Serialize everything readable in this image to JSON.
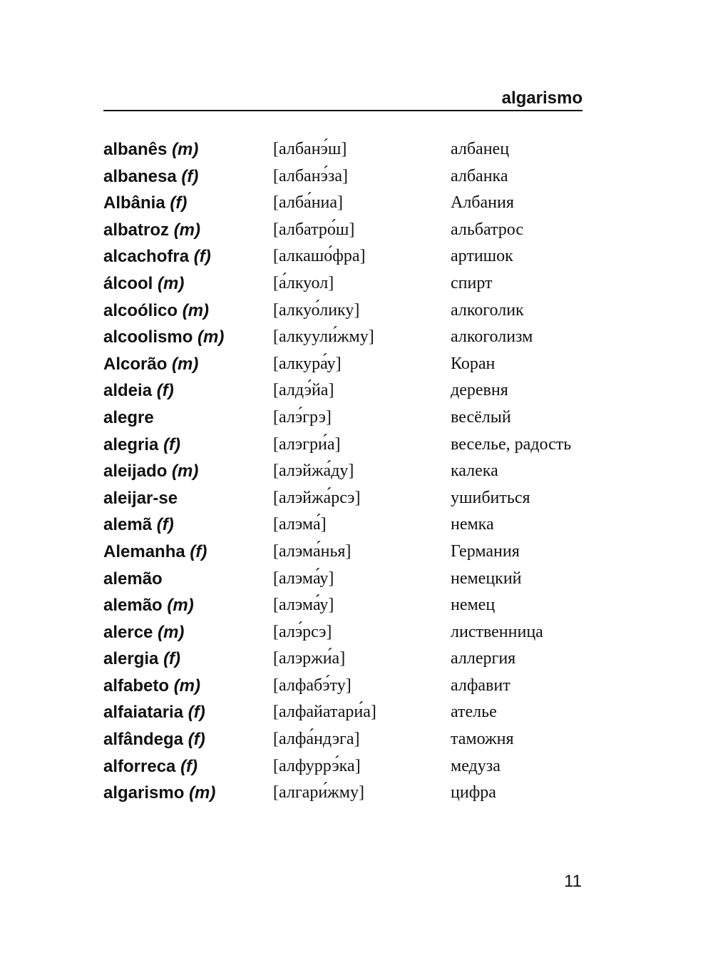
{
  "running_head": "algarismo",
  "page_number": "11",
  "entries": [
    {
      "word": "albanês",
      "gender": "(m)",
      "transcription": "[албанэ́ш]",
      "translation": "албанец"
    },
    {
      "word": "albanesa",
      "gender": "(f)",
      "transcription": "[албанэ́за]",
      "translation": "албанка"
    },
    {
      "word": "Albânia",
      "gender": "(f)",
      "transcription": "[алба́ниа]",
      "translation": "Албания"
    },
    {
      "word": "albatroz",
      "gender": "(m)",
      "transcription": "[албатро́ш]",
      "translation": "альбатрос"
    },
    {
      "word": "alcachofra",
      "gender": "(f)",
      "transcription": "[алкашо́фра]",
      "translation": "артишок"
    },
    {
      "word": "álcool",
      "gender": "(m)",
      "transcription": "[а́лкуол]",
      "translation": "спирт"
    },
    {
      "word": "alcoólico",
      "gender": "(m)",
      "transcription": "[алкуо́лику]",
      "translation": "алкоголик"
    },
    {
      "word": "alcoolismo",
      "gender": "(m)",
      "transcription": "[алкуули́жму]",
      "translation": "алкоголизм"
    },
    {
      "word": "Alcorão",
      "gender": "(m)",
      "transcription": "[алкура́у]",
      "translation": "Коран"
    },
    {
      "word": "aldeia",
      "gender": "(f)",
      "transcription": "[алдэ́йа]",
      "translation": "деревня"
    },
    {
      "word": "alegre",
      "gender": "",
      "transcription": "[алэ́грэ]",
      "translation": "весёлый"
    },
    {
      "word": "alegria",
      "gender": "(f)",
      "transcription": "[алэгри́а]",
      "translation": "веселье, радость"
    },
    {
      "word": "aleijado",
      "gender": "(m)",
      "transcription": "[алэйжа́ду]",
      "translation": "калека"
    },
    {
      "word": "aleijar-se",
      "gender": "",
      "transcription": "[алэйжа́рсэ]",
      "translation": "ушибиться"
    },
    {
      "word": "alemã",
      "gender": "(f)",
      "transcription": "[алэма́]",
      "translation": "немка"
    },
    {
      "word": "Alemanha",
      "gender": "(f)",
      "transcription": "[алэма́нья]",
      "translation": "Германия"
    },
    {
      "word": "alemão",
      "gender": "",
      "transcription": "[алэма́у]",
      "translation": "немецкий"
    },
    {
      "word": "alemão",
      "gender": "(m)",
      "transcription": "[алэма́у]",
      "translation": "немец"
    },
    {
      "word": "alerce",
      "gender": "(m)",
      "transcription": "[алэ́рсэ]",
      "translation": "лиственница"
    },
    {
      "word": "alergia",
      "gender": "(f)",
      "transcription": "[алэржи́а]",
      "translation": "аллергия"
    },
    {
      "word": "alfabeto",
      "gender": "(m)",
      "transcription": "[алфабэ́ту]",
      "translation": "алфавит"
    },
    {
      "word": "alfaiataria",
      "gender": "(f)",
      "transcription": "[алфайатари́а]",
      "translation": "ателье"
    },
    {
      "word": "alfândega",
      "gender": "(f)",
      "transcription": "[алфа́ндэга]",
      "translation": "таможня"
    },
    {
      "word": "alforreca",
      "gender": "(f)",
      "transcription": "[алфуррэ́ка]",
      "translation": "медуза"
    },
    {
      "word": "algarismo",
      "gender": "(m)",
      "transcription": "[алгари́жму]",
      "translation": "цифра"
    }
  ]
}
